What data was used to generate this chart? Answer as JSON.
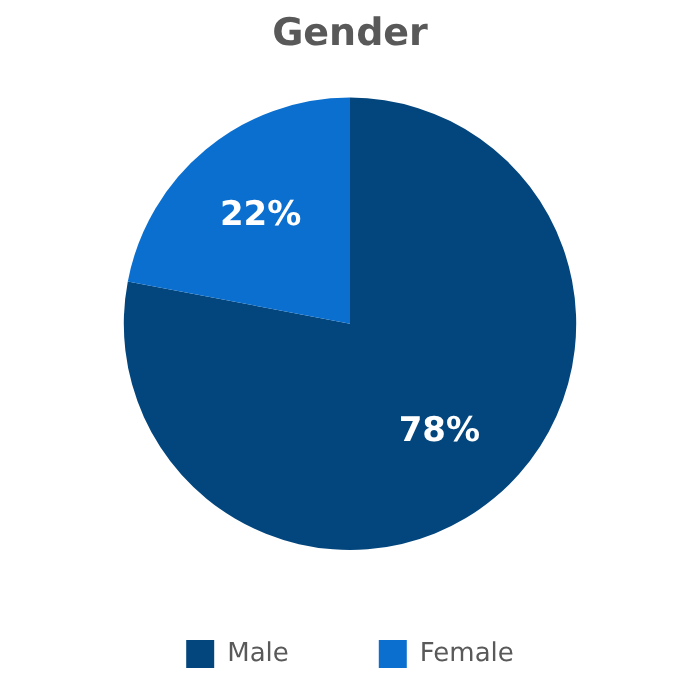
{
  "chart_data": {
    "type": "pie",
    "title": "Gender",
    "categories": [
      "Male",
      "Female"
    ],
    "values": [
      78,
      22
    ],
    "value_labels": [
      "78%",
      "22%"
    ],
    "colors": [
      "#03467d",
      "#0a6fcf"
    ],
    "legend": "bottom"
  }
}
